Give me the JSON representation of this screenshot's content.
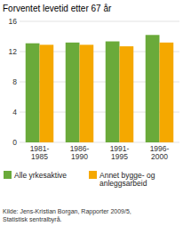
{
  "chart_data": {
    "type": "bar",
    "title": "Forventet levetid etter 67 år",
    "categories": [
      "1981-\n1985",
      "1986-\n1990",
      "1991-\n1995",
      "1996-\n2000"
    ],
    "series": [
      {
        "name": "Alle yrkesaktive",
        "color": "#6aaa3a",
        "values": [
          13.1,
          13.2,
          13.35,
          14.2
        ]
      },
      {
        "name": "Annet bygge- og\nanleggsarbeid",
        "color": "#f5a800",
        "values": [
          12.9,
          12.9,
          12.7,
          13.2
        ]
      }
    ],
    "ylim": [
      0,
      16
    ],
    "yticks": [
      0,
      4,
      8,
      12,
      16
    ],
    "grid": true,
    "legend": "bottom",
    "source": "Kilde: Jens-Kristian Borgan, Rapporter 2009/5,\nStatistisk sentralbyrå."
  }
}
